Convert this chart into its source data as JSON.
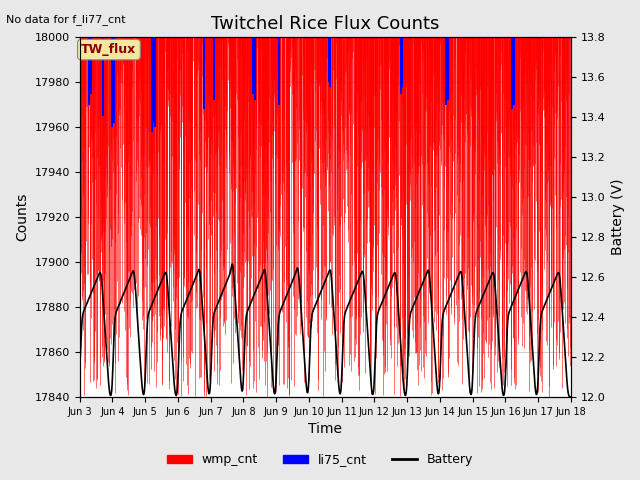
{
  "title": "Twitchel Rice Flux Counts",
  "no_data_text": "No data for f_li77_cnt",
  "box_label": "TW_flux",
  "xlabel": "Time",
  "ylabel_left": "Counts",
  "ylabel_right": "Battery (V)",
  "ylim_left": [
    17840,
    18000
  ],
  "ylim_right": [
    12.0,
    13.8
  ],
  "yticks_left": [
    17840,
    17860,
    17880,
    17900,
    17920,
    17940,
    17960,
    17980,
    18000
  ],
  "yticks_right": [
    12.0,
    12.2,
    12.4,
    12.6,
    12.8,
    13.0,
    13.2,
    13.4,
    13.6,
    13.8
  ],
  "xtick_labels": [
    "Jun 3",
    "Jun 4",
    "Jun 5",
    "Jun 6",
    "Jun 7",
    "Jun 8",
    "Jun 9",
    "Jun 10",
    "Jun 11",
    "Jun 12",
    "Jun 13",
    "Jun 14",
    "Jun 15",
    "Jun 16",
    "Jun 17",
    "Jun 18"
  ],
  "bg_color": "#e8e8e8",
  "plot_bg_color": "#ffffff",
  "wmp_color": "#ff0000",
  "li75_color": "#0000ff",
  "battery_color": "#000000",
  "legend_items": [
    "wmp_cnt",
    "li75_cnt",
    "Battery"
  ],
  "title_fontsize": 13,
  "axis_label_fontsize": 10,
  "tick_fontsize": 8,
  "legend_fontsize": 9,
  "n_days": 15,
  "counts_min": 17840,
  "counts_max": 18000,
  "batt_min": 12.0,
  "batt_max": 13.8
}
